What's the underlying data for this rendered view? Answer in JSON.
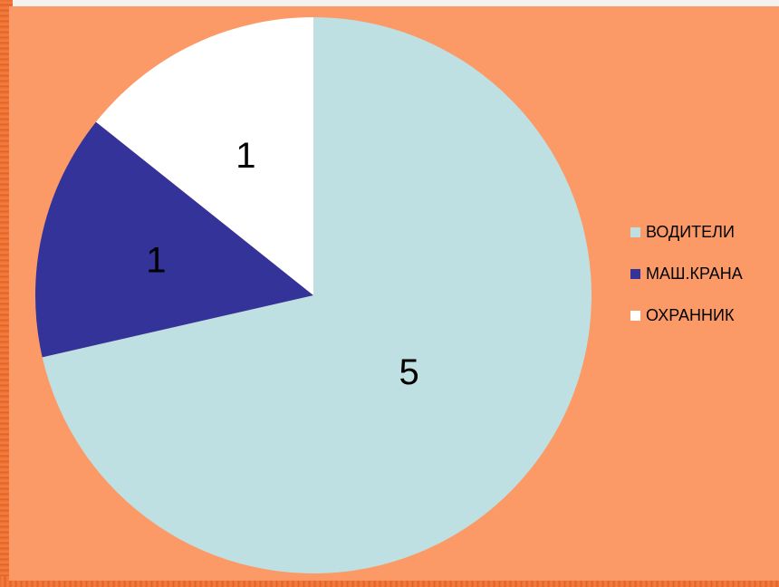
{
  "colors": {
    "plot_background": "#fb9a67",
    "frame_orange": "#ec6a2c"
  },
  "chart_data": {
    "type": "pie",
    "categories": [
      "ВОДИТЕЛИ",
      "МАШ.КРАНА",
      "ОХРАННИК"
    ],
    "values": [
      5,
      1,
      1
    ],
    "data_labels": [
      "5",
      "1",
      "1"
    ],
    "colors": [
      "#bfe0e2",
      "#333399",
      "#ffffff"
    ],
    "start_angle": "12 o'clock",
    "direction": "clockwise",
    "legend_position": "right",
    "title": ""
  }
}
